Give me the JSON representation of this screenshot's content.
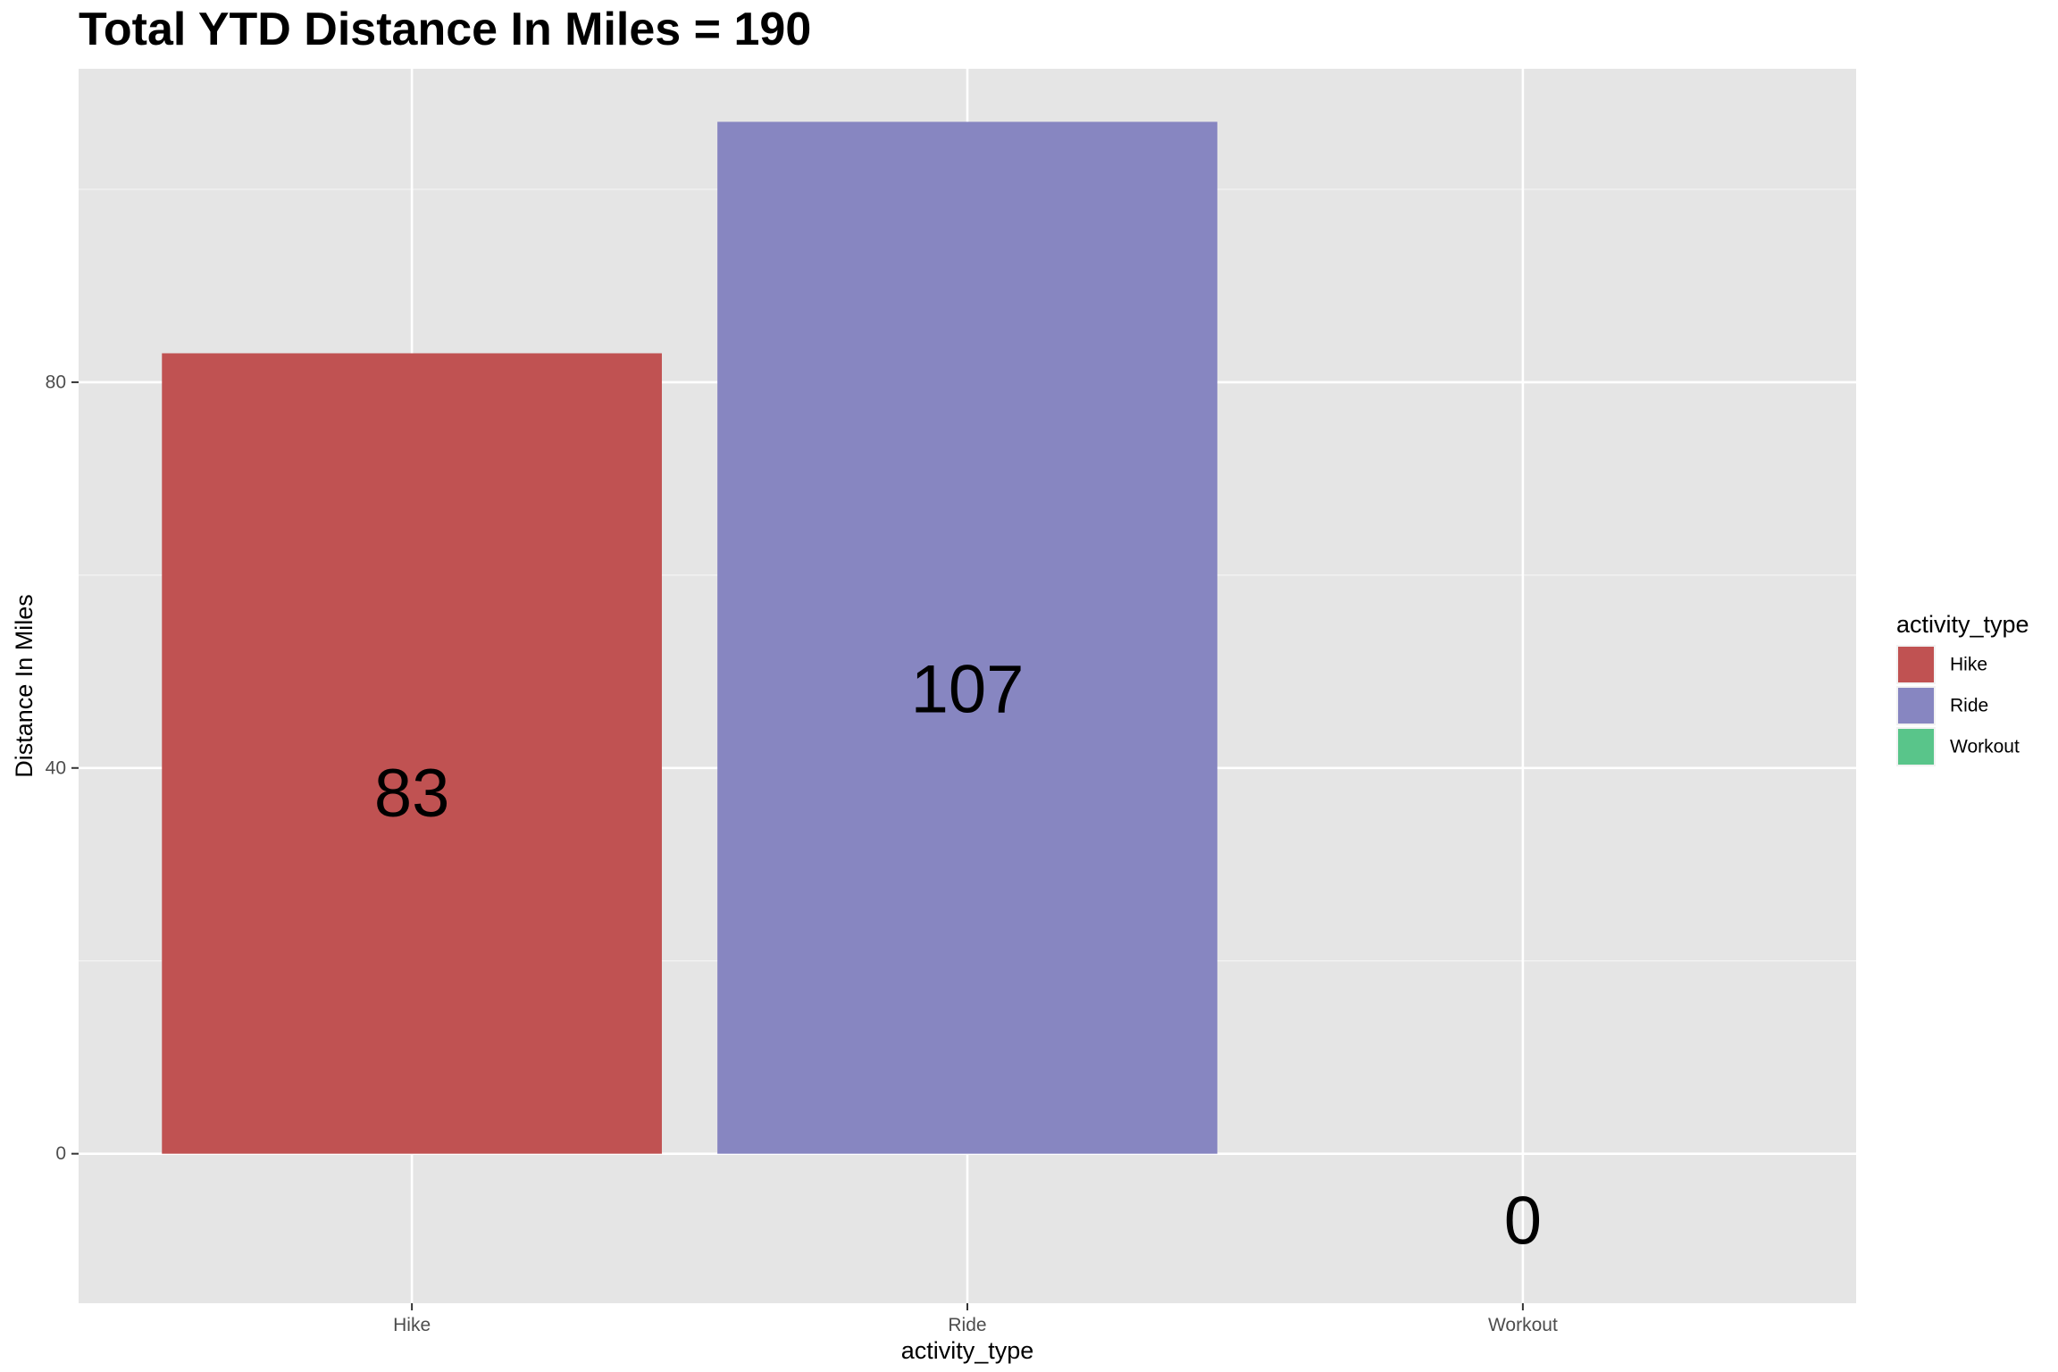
{
  "chart_data": {
    "type": "bar",
    "title": "Total YTD Distance In Miles  = 190",
    "xlabel": "activity_type",
    "ylabel": "Distance In Miles",
    "categories": [
      "Hike",
      "Ride",
      "Workout"
    ],
    "values": [
      83,
      107,
      0
    ],
    "data_labels": [
      "83",
      "107",
      "0"
    ],
    "colors": [
      "#C05252",
      "#8786C1",
      "#59C58A"
    ],
    "ylim": [
      -15.5,
      112.5
    ],
    "yticks": [
      0,
      40,
      80
    ],
    "ytick_labels": [
      "0",
      "40",
      "80"
    ],
    "grid": true,
    "panel_background": "#E5E5E5",
    "legend": {
      "title": "activity_type",
      "position": "right",
      "entries": [
        "Hike",
        "Ride",
        "Workout"
      ]
    }
  }
}
